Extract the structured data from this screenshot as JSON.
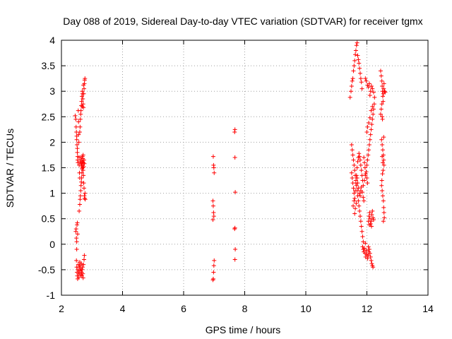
{
  "chart_data": {
    "type": "scatter",
    "title": "Day 088 of 2019, Sidereal Day-to-day VTEC variation (SDTVAR) for receiver tgmx",
    "xlabel": "GPS time / hours",
    "ylabel": "SDTVAR / TECUs",
    "xlim": [
      2,
      14
    ],
    "ylim": [
      -1,
      4
    ],
    "xticks": [
      2,
      4,
      6,
      8,
      10,
      12,
      14
    ],
    "xtick_labels": [
      "2",
      "4",
      "6",
      "8",
      "10",
      "12",
      "14"
    ],
    "yticks": [
      -1,
      -0.5,
      0,
      0.5,
      1,
      1.5,
      2,
      2.5,
      3,
      3.5,
      4
    ],
    "ytick_labels": [
      "-1",
      "-0.5",
      "0",
      "0.5",
      "1",
      "1.5",
      "2",
      "2.5",
      "3",
      "3.5",
      "4"
    ],
    "grid": true,
    "marker": "plus",
    "color": "#ff0000",
    "series": [
      {
        "name": "SDTVAR",
        "points": [
          [
            2.45,
            2.52
          ],
          [
            2.47,
            2.45
          ],
          [
            2.48,
            2.3
          ],
          [
            2.49,
            2.2
          ],
          [
            2.5,
            2.12
          ],
          [
            2.5,
            2.05
          ],
          [
            2.51,
            1.95
          ],
          [
            2.52,
            1.88
          ],
          [
            2.52,
            1.8
          ],
          [
            2.53,
            1.72
          ],
          [
            2.53,
            1.65
          ],
          [
            2.54,
            1.6
          ],
          [
            2.55,
            2.62
          ],
          [
            2.56,
            2.4
          ],
          [
            2.56,
            2.15
          ],
          [
            2.57,
            2.0
          ],
          [
            2.58,
            1.7
          ],
          [
            2.58,
            1.55
          ],
          [
            2.59,
            1.4
          ],
          [
            2.6,
            1.3
          ],
          [
            2.47,
            0.25
          ],
          [
            2.48,
            0.3
          ],
          [
            2.49,
            0.12
          ],
          [
            2.5,
            0.05
          ],
          [
            2.51,
            0.38
          ],
          [
            2.52,
            0.42
          ],
          [
            2.53,
            0.2
          ],
          [
            2.5,
            -0.1
          ],
          [
            2.49,
            -0.32
          ],
          [
            2.5,
            -0.45
          ],
          [
            2.51,
            -0.55
          ],
          [
            2.52,
            -0.62
          ],
          [
            2.53,
            -0.68
          ],
          [
            2.54,
            -0.5
          ],
          [
            2.55,
            -0.4
          ],
          [
            2.56,
            -0.58
          ],
          [
            2.57,
            -0.65
          ],
          [
            2.58,
            -0.55
          ],
          [
            2.59,
            -0.45
          ],
          [
            2.6,
            -0.35
          ],
          [
            2.61,
            -0.42
          ],
          [
            2.62,
            -0.52
          ],
          [
            2.63,
            -0.6
          ],
          [
            2.64,
            -0.48
          ],
          [
            2.65,
            -0.38
          ],
          [
            2.66,
            -0.55
          ],
          [
            2.67,
            -0.62
          ],
          [
            2.68,
            -0.5
          ],
          [
            2.69,
            -0.45
          ],
          [
            2.7,
            -0.58
          ],
          [
            2.71,
            -0.66
          ],
          [
            2.72,
            -0.4
          ],
          [
            2.74,
            -0.3
          ],
          [
            2.75,
            -0.22
          ],
          [
            2.58,
            0.65
          ],
          [
            2.6,
            0.78
          ],
          [
            2.61,
            0.88
          ],
          [
            2.62,
            0.95
          ],
          [
            2.63,
            1.05
          ],
          [
            2.64,
            1.15
          ],
          [
            2.65,
            1.22
          ],
          [
            2.66,
            1.3
          ],
          [
            2.67,
            1.4
          ],
          [
            2.68,
            1.52
          ],
          [
            2.69,
            1.6
          ],
          [
            2.7,
            1.5
          ],
          [
            2.71,
            1.45
          ],
          [
            2.72,
            1.35
          ],
          [
            2.73,
            1.2
          ],
          [
            2.74,
            1.1
          ],
          [
            2.75,
            0.95
          ],
          [
            2.76,
            0.9
          ],
          [
            2.77,
            1.0
          ],
          [
            2.78,
            0.88
          ],
          [
            2.62,
            1.62
          ],
          [
            2.63,
            1.7
          ],
          [
            2.64,
            1.58
          ],
          [
            2.65,
            1.65
          ],
          [
            2.66,
            1.55
          ],
          [
            2.67,
            1.48
          ],
          [
            2.68,
            1.62
          ],
          [
            2.69,
            1.72
          ],
          [
            2.7,
            1.68
          ],
          [
            2.71,
            1.75
          ],
          [
            2.72,
            1.6
          ],
          [
            2.73,
            1.52
          ],
          [
            2.74,
            1.65
          ],
          [
            2.75,
            1.58
          ],
          [
            2.6,
            2.2
          ],
          [
            2.61,
            2.3
          ],
          [
            2.62,
            2.45
          ],
          [
            2.63,
            2.55
          ],
          [
            2.64,
            2.62
          ],
          [
            2.65,
            2.72
          ],
          [
            2.66,
            2.8
          ],
          [
            2.67,
            2.9
          ],
          [
            2.68,
            3.0
          ],
          [
            2.69,
            2.95
          ],
          [
            2.7,
            2.85
          ],
          [
            2.71,
            2.75
          ],
          [
            2.72,
            2.68
          ],
          [
            2.73,
            2.95
          ],
          [
            2.74,
            3.05
          ],
          [
            2.75,
            3.15
          ],
          [
            2.76,
            3.22
          ],
          [
            2.77,
            3.25
          ],
          [
            2.72,
            3.12
          ],
          [
            2.68,
            2.7
          ],
          [
            6.97,
            1.72
          ],
          [
            6.98,
            1.55
          ],
          [
            6.99,
            1.5
          ],
          [
            7.0,
            1.4
          ],
          [
            6.96,
            0.85
          ],
          [
            6.97,
            0.75
          ],
          [
            6.98,
            0.62
          ],
          [
            6.99,
            0.55
          ],
          [
            6.96,
            0.48
          ],
          [
            7.0,
            -0.32
          ],
          [
            6.99,
            -0.42
          ],
          [
            6.98,
            -0.55
          ],
          [
            6.97,
            -0.68
          ],
          [
            6.96,
            -0.7
          ],
          [
            7.68,
            2.25
          ],
          [
            7.67,
            2.2
          ],
          [
            7.68,
            1.7
          ],
          [
            7.69,
            1.02
          ],
          [
            7.68,
            0.32
          ],
          [
            7.67,
            0.3
          ],
          [
            7.69,
            -0.1
          ],
          [
            7.68,
            -0.3
          ],
          [
            11.45,
            2.88
          ],
          [
            11.48,
            3.0
          ],
          [
            11.5,
            3.1
          ],
          [
            11.52,
            3.2
          ],
          [
            11.54,
            3.25
          ],
          [
            11.56,
            3.4
          ],
          [
            11.58,
            3.5
          ],
          [
            11.6,
            3.6
          ],
          [
            11.62,
            3.72
          ],
          [
            11.64,
            3.8
          ],
          [
            11.66,
            3.9
          ],
          [
            11.68,
            3.95
          ],
          [
            11.7,
            3.7
          ],
          [
            11.72,
            3.62
          ],
          [
            11.74,
            3.55
          ],
          [
            11.76,
            3.45
          ],
          [
            11.78,
            3.35
          ],
          [
            11.8,
            3.25
          ],
          [
            11.82,
            3.18
          ],
          [
            11.84,
            3.05
          ],
          [
            11.5,
            1.95
          ],
          [
            11.52,
            1.85
          ],
          [
            11.54,
            1.75
          ],
          [
            11.56,
            1.65
          ],
          [
            11.58,
            1.55
          ],
          [
            11.6,
            1.45
          ],
          [
            11.62,
            1.35
          ],
          [
            11.64,
            1.25
          ],
          [
            11.66,
            1.15
          ],
          [
            11.68,
            1.05
          ],
          [
            11.7,
            0.95
          ],
          [
            11.72,
            0.85
          ],
          [
            11.74,
            0.75
          ],
          [
            11.76,
            0.65
          ],
          [
            11.78,
            0.55
          ],
          [
            11.8,
            0.45
          ],
          [
            11.82,
            0.35
          ],
          [
            11.84,
            0.25
          ],
          [
            11.86,
            0.15
          ],
          [
            11.88,
            0.05
          ],
          [
            11.5,
            1.4
          ],
          [
            11.52,
            1.3
          ],
          [
            11.54,
            1.2
          ],
          [
            11.56,
            1.1
          ],
          [
            11.58,
            1.0
          ],
          [
            11.6,
            0.9
          ],
          [
            11.62,
            1.05
          ],
          [
            11.64,
            1.2
          ],
          [
            11.66,
            1.35
          ],
          [
            11.68,
            1.5
          ],
          [
            11.7,
            1.62
          ],
          [
            11.72,
            1.7
          ],
          [
            11.74,
            1.78
          ],
          [
            11.76,
            1.72
          ],
          [
            11.78,
            1.65
          ],
          [
            11.8,
            1.55
          ],
          [
            11.82,
            1.45
          ],
          [
            11.84,
            1.35
          ],
          [
            11.86,
            1.25
          ],
          [
            11.88,
            1.15
          ],
          [
            11.55,
            0.75
          ],
          [
            11.58,
            0.85
          ],
          [
            11.6,
            0.6
          ],
          [
            11.62,
            0.7
          ],
          [
            11.65,
            0.8
          ],
          [
            11.68,
            1.3
          ],
          [
            11.7,
            1.2
          ],
          [
            11.72,
            1.1
          ],
          [
            11.75,
            1.0
          ],
          [
            11.78,
            0.95
          ],
          [
            11.8,
            1.05
          ],
          [
            11.82,
            1.12
          ],
          [
            11.85,
            1.02
          ],
          [
            11.88,
            0.92
          ],
          [
            11.9,
            0.85
          ],
          [
            11.92,
            1.25
          ],
          [
            11.95,
            1.35
          ],
          [
            11.98,
            1.42
          ],
          [
            12.0,
            1.3
          ],
          [
            12.02,
            1.2
          ],
          [
            11.86,
            -0.05
          ],
          [
            11.88,
            -0.1
          ],
          [
            11.9,
            -0.15
          ],
          [
            11.92,
            -0.08
          ],
          [
            11.94,
            -0.18
          ],
          [
            11.96,
            -0.25
          ],
          [
            11.98,
            -0.12
          ],
          [
            12.0,
            -0.2
          ],
          [
            12.02,
            -0.28
          ],
          [
            12.04,
            -0.22
          ],
          [
            12.06,
            -0.15
          ],
          [
            12.08,
            -0.1
          ],
          [
            12.1,
            -0.18
          ],
          [
            12.12,
            -0.25
          ],
          [
            12.14,
            -0.32
          ],
          [
            12.16,
            -0.38
          ],
          [
            12.18,
            -0.42
          ],
          [
            12.2,
            -0.45
          ],
          [
            12.05,
            -0.05
          ],
          [
            11.95,
            0.02
          ],
          [
            12.05,
            0.45
          ],
          [
            12.07,
            0.55
          ],
          [
            12.09,
            0.62
          ],
          [
            12.1,
            0.5
          ],
          [
            12.12,
            0.4
          ],
          [
            12.14,
            0.45
          ],
          [
            12.16,
            0.58
          ],
          [
            12.18,
            0.65
          ],
          [
            12.2,
            0.52
          ],
          [
            12.22,
            0.48
          ],
          [
            12.08,
            0.38
          ],
          [
            12.15,
            0.35
          ],
          [
            12.0,
            1.55
          ],
          [
            12.02,
            1.65
          ],
          [
            12.04,
            1.75
          ],
          [
            12.06,
            1.85
          ],
          [
            12.08,
            1.95
          ],
          [
            12.1,
            2.05
          ],
          [
            12.12,
            2.15
          ],
          [
            12.14,
            2.25
          ],
          [
            12.16,
            2.35
          ],
          [
            12.18,
            2.45
          ],
          [
            12.2,
            2.55
          ],
          [
            12.22,
            2.65
          ],
          [
            12.24,
            2.75
          ],
          [
            12.25,
            2.88
          ],
          [
            12.22,
            2.98
          ],
          [
            12.18,
            3.05
          ],
          [
            12.15,
            3.1
          ],
          [
            12.12,
            3.0
          ],
          [
            12.1,
            2.92
          ],
          [
            12.08,
            3.15
          ],
          [
            11.95,
            3.25
          ],
          [
            11.98,
            3.2
          ],
          [
            12.02,
            3.12
          ],
          [
            12.05,
            3.08
          ],
          [
            12.0,
            2.2
          ],
          [
            12.02,
            2.3
          ],
          [
            12.06,
            2.38
          ],
          [
            12.1,
            2.48
          ],
          [
            12.14,
            2.62
          ],
          [
            12.18,
            2.7
          ],
          [
            11.9,
            1.7
          ],
          [
            11.92,
            1.6
          ],
          [
            11.94,
            1.5
          ],
          [
            11.96,
            1.38
          ],
          [
            12.45,
            3.4
          ],
          [
            12.47,
            3.3
          ],
          [
            12.49,
            3.2
          ],
          [
            12.5,
            3.1
          ],
          [
            12.51,
            3.0
          ],
          [
            12.52,
            2.9
          ],
          [
            12.53,
            2.8
          ],
          [
            12.54,
            2.95
          ],
          [
            12.55,
            3.05
          ],
          [
            12.56,
            3.15
          ],
          [
            12.58,
            3.0
          ],
          [
            12.6,
            2.98
          ],
          [
            12.45,
            2.55
          ],
          [
            12.47,
            2.65
          ],
          [
            12.49,
            2.75
          ],
          [
            12.5,
            2.5
          ],
          [
            12.51,
            2.45
          ],
          [
            12.48,
            2.05
          ],
          [
            12.5,
            1.95
          ],
          [
            12.52,
            1.85
          ],
          [
            12.54,
            1.75
          ],
          [
            12.55,
            1.65
          ],
          [
            12.56,
            1.55
          ],
          [
            12.53,
            1.45
          ],
          [
            12.51,
            1.38
          ],
          [
            12.49,
            1.25
          ],
          [
            12.48,
            1.15
          ],
          [
            12.5,
            1.05
          ],
          [
            12.52,
            0.95
          ],
          [
            12.54,
            0.85
          ],
          [
            12.55,
            0.72
          ],
          [
            12.56,
            0.62
          ],
          [
            12.57,
            0.52
          ],
          [
            12.54,
            0.45
          ],
          [
            12.52,
            1.6
          ],
          [
            12.5,
            1.72
          ],
          [
            12.55,
            2.1
          ]
        ]
      }
    ]
  }
}
